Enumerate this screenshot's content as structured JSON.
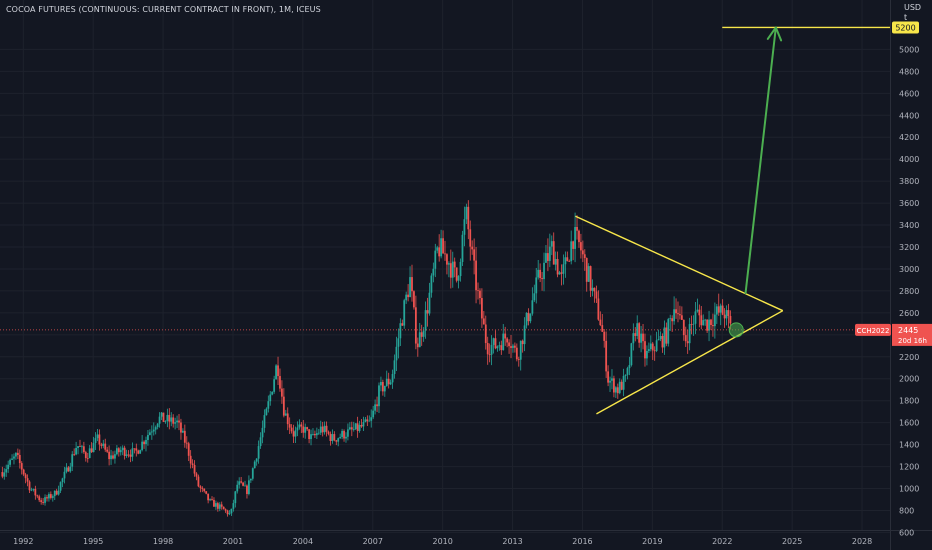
{
  "header": {
    "title": "COCOA FUTURES (CONTINUOUS: CURRENT CONTRACT IN FRONT), 1M, ICEUS",
    "currency": "USD"
  },
  "chart_data": {
    "type": "candlestick",
    "title": "COCOA FUTURES (CONTINUOUS: CURRENT CONTRACT IN FRONT), 1M, ICEUS",
    "x_ticks": [
      "1992",
      "1995",
      "1998",
      "2001",
      "2004",
      "2007",
      "2010",
      "2013",
      "2016",
      "2019",
      "2022",
      "2025",
      "2028"
    ],
    "y_ticks": [
      600,
      800,
      1000,
      1200,
      1400,
      1600,
      1800,
      2000,
      2200,
      2400,
      2600,
      2800,
      3000,
      3200,
      3400,
      3600,
      3800,
      4000,
      4200,
      4400,
      4600,
      4800,
      5000
    ],
    "ylim": [
      440,
      5450
    ],
    "xlim": [
      1991.0,
      2029.2
    ],
    "y_axis_side": "right",
    "grid": true,
    "price_path": [
      [
        1991.1,
        1150
      ],
      [
        1991.7,
        1300
      ],
      [
        1992.3,
        1000
      ],
      [
        1992.8,
        880
      ],
      [
        1993.4,
        960
      ],
      [
        1993.9,
        1180
      ],
      [
        1994.3,
        1400
      ],
      [
        1994.7,
        1300
      ],
      [
        1995.2,
        1450
      ],
      [
        1995.7,
        1280
      ],
      [
        1996.2,
        1350
      ],
      [
        1996.8,
        1320
      ],
      [
        1997.3,
        1480
      ],
      [
        1997.8,
        1640
      ],
      [
        1998.2,
        1620
      ],
      [
        1998.6,
        1600
      ],
      [
        1999.0,
        1400
      ],
      [
        1999.5,
        1030
      ],
      [
        2000.0,
        880
      ],
      [
        2000.5,
        820
      ],
      [
        2000.9,
        760
      ],
      [
        2001.2,
        1050
      ],
      [
        2001.6,
        980
      ],
      [
        2002.0,
        1300
      ],
      [
        2002.5,
        1750
      ],
      [
        2002.9,
        2150
      ],
      [
        2003.2,
        1700
      ],
      [
        2003.6,
        1500
      ],
      [
        2004.0,
        1550
      ],
      [
        2004.4,
        1450
      ],
      [
        2004.8,
        1550
      ],
      [
        2005.3,
        1450
      ],
      [
        2005.8,
        1500
      ],
      [
        2006.4,
        1550
      ],
      [
        2006.9,
        1600
      ],
      [
        2007.3,
        1900
      ],
      [
        2007.8,
        2000
      ],
      [
        2008.2,
        2500
      ],
      [
        2008.6,
        2900
      ],
      [
        2008.9,
        2300
      ],
      [
        2009.3,
        2600
      ],
      [
        2009.8,
        3200
      ],
      [
        2010.2,
        3100
      ],
      [
        2010.6,
        2900
      ],
      [
        2011.0,
        3500
      ],
      [
        2011.4,
        2900
      ],
      [
        2011.9,
        2300
      ],
      [
        2012.3,
        2300
      ],
      [
        2012.8,
        2400
      ],
      [
        2013.2,
        2200
      ],
      [
        2013.7,
        2600
      ],
      [
        2014.1,
        2900
      ],
      [
        2014.7,
        3200
      ],
      [
        2015.1,
        2900
      ],
      [
        2015.6,
        3300
      ],
      [
        2015.9,
        3200
      ],
      [
        2016.3,
        2900
      ],
      [
        2016.8,
        2500
      ],
      [
        2017.1,
        2000
      ],
      [
        2017.5,
        1900
      ],
      [
        2017.9,
        2000
      ],
      [
        2018.3,
        2500
      ],
      [
        2018.7,
        2200
      ],
      [
        2019.1,
        2300
      ],
      [
        2019.6,
        2400
      ],
      [
        2020.0,
        2700
      ],
      [
        2020.4,
        2350
      ],
      [
        2020.9,
        2600
      ],
      [
        2021.3,
        2500
      ],
      [
        2021.8,
        2600
      ],
      [
        2022.1,
        2600
      ],
      [
        2022.4,
        2450
      ]
    ],
    "candle_colors": {
      "up": "#26a69a",
      "down": "#ef5350"
    },
    "current_price": {
      "symbol": "CCH2022",
      "value": "2445",
      "countdown": "20d 16h",
      "level": 2445
    },
    "target": {
      "label": "5200",
      "level": 5200
    },
    "annotations": {
      "triangle_upper": [
        [
          2015.7,
          3480
        ],
        [
          2024.6,
          2620
        ]
      ],
      "triangle_lower": [
        [
          2016.6,
          1680
        ],
        [
          2024.6,
          2620
        ]
      ],
      "target_line": [
        [
          2022.0,
          5200
        ],
        [
          2029.2,
          5200
        ]
      ],
      "arrow": [
        [
          2023.0,
          2780
        ],
        [
          2024.3,
          5200
        ]
      ],
      "marker": [
        2022.6,
        2445
      ],
      "line_color": "#f7e64a",
      "arrow_color": "#4caf50"
    }
  }
}
